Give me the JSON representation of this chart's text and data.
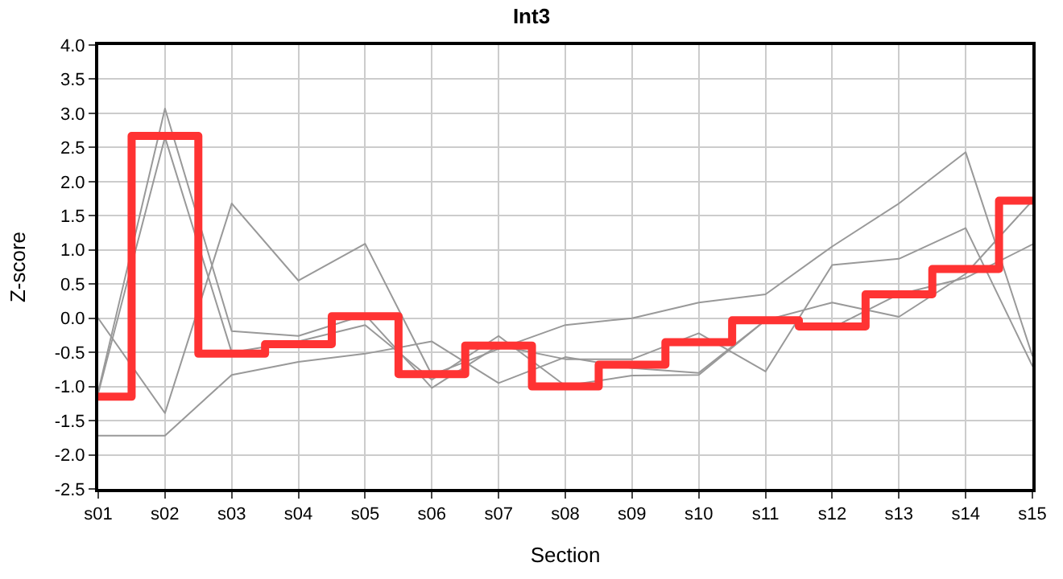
{
  "chart_data": {
    "type": "line",
    "title": "Int3",
    "xlabel": "Section",
    "ylabel": "Z-score",
    "categories": [
      "s01",
      "s02",
      "s03",
      "s04",
      "s05",
      "s06",
      "s07",
      "s08",
      "s09",
      "s10",
      "s11",
      "s12",
      "s13",
      "s14",
      "s15"
    ],
    "series": [
      {
        "color": "#999999",
        "values": [
          0.0,
          -1.39,
          1.68,
          0.55,
          1.09,
          -0.83,
          -0.45,
          -0.1,
          0.0,
          0.23,
          0.35,
          1.05,
          1.68,
          2.43,
          -0.55
        ]
      },
      {
        "color": "#999999",
        "values": [
          -1.72,
          -1.72,
          -0.83,
          -0.64,
          -0.52,
          -0.34,
          -0.95,
          -0.57,
          -0.73,
          -0.8,
          -0.03,
          0.23,
          0.02,
          0.65,
          1.72
        ]
      },
      {
        "color": "#999999",
        "values": [
          -1.07,
          3.07,
          -0.19,
          -0.26,
          0.05,
          -1.02,
          -0.4,
          -0.6,
          -0.6,
          -0.22,
          -0.78,
          0.78,
          0.87,
          1.32,
          -0.7
        ]
      },
      {
        "color": "#999999",
        "values": [
          -1.1,
          2.65,
          -0.5,
          -0.34,
          -0.1,
          -0.9,
          -0.26,
          -0.99,
          -0.84,
          -0.83,
          -0.03,
          -0.14,
          0.35,
          0.59,
          1.08
        ]
      },
      {
        "type": "step",
        "color": "#ff3333",
        "values": [
          -1.15,
          2.67,
          -0.52,
          -0.38,
          0.03,
          -0.82,
          -0.4,
          -1.0,
          -0.68,
          -0.35,
          -0.03,
          -0.12,
          0.35,
          0.72,
          1.72
        ]
      }
    ],
    "ylim": [
      -2.5,
      4.0
    ],
    "yticks": [
      {
        "value": -2.5,
        "label": "-2.5"
      },
      {
        "value": -2,
        "label": "-2.0"
      },
      {
        "value": -1.5,
        "label": "-1.5"
      },
      {
        "value": -1,
        "label": "-1.0"
      },
      {
        "value": -0.5,
        "label": "-0.5"
      },
      {
        "value": 0,
        "label": "0.0"
      },
      {
        "value": 0.5,
        "label": "0.5"
      },
      {
        "value": 1,
        "label": "1.0"
      },
      {
        "value": 1.5,
        "label": "1.5"
      },
      {
        "value": 2,
        "label": "2.0"
      },
      {
        "value": 2.5,
        "label": "2.5"
      },
      {
        "value": 3,
        "label": "3.0"
      },
      {
        "value": 3.5,
        "label": "3.5"
      },
      {
        "value": 4,
        "label": "4.0"
      }
    ],
    "grid": true
  }
}
